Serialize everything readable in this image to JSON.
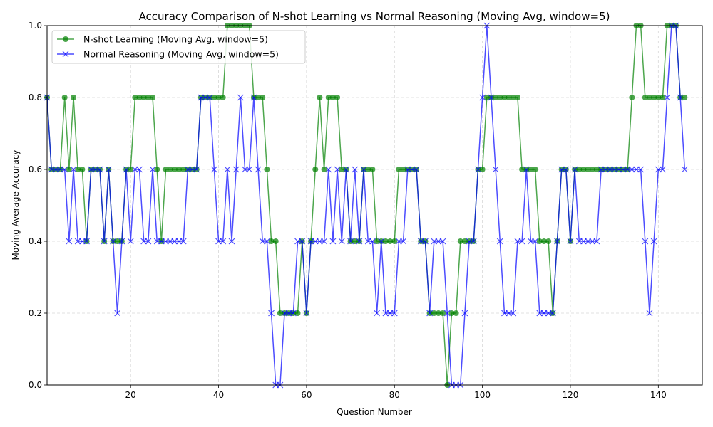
{
  "chart_data": {
    "type": "line",
    "title": "Accuracy Comparison of N-shot Learning vs Normal Reasoning (Moving Avg, window=5)",
    "xlabel": "Question Number",
    "ylabel": "Moving Average Accuracy",
    "xlim": [
      1,
      150
    ],
    "ylim": [
      0,
      1
    ],
    "xticks": [
      20,
      40,
      60,
      80,
      100,
      120,
      140
    ],
    "xtick_labels": [
      "20",
      "40",
      "60",
      "80",
      "100",
      "120",
      "140"
    ],
    "yticks": [
      0.0,
      0.2,
      0.4,
      0.6,
      0.8,
      1.0
    ],
    "ytick_labels": [
      "0.0",
      "0.2",
      "0.4",
      "0.6",
      "0.8",
      "1.0"
    ],
    "grid": true,
    "legend_position": "top-left",
    "x_start": 1,
    "series": [
      {
        "name": "N-shot Learning (Moving Avg, window=5)",
        "color": "#008000",
        "marker": "circle",
        "values": [
          0.8,
          0.6,
          0.6,
          0.6,
          0.8,
          0.6,
          0.8,
          0.6,
          0.6,
          0.4,
          0.6,
          0.6,
          0.6,
          0.4,
          0.6,
          0.4,
          0.4,
          0.4,
          0.6,
          0.6,
          0.8,
          0.8,
          0.8,
          0.8,
          0.8,
          0.6,
          0.4,
          0.6,
          0.6,
          0.6,
          0.6,
          0.6,
          0.6,
          0.6,
          0.6,
          0.8,
          0.8,
          0.8,
          0.8,
          0.8,
          0.8,
          1.0,
          1.0,
          1.0,
          1.0,
          1.0,
          1.0,
          0.8,
          0.8,
          0.8,
          0.6,
          0.4,
          0.4,
          0.2,
          0.2,
          0.2,
          0.2,
          0.2,
          0.4,
          0.2,
          0.4,
          0.6,
          0.8,
          0.6,
          0.8,
          0.8,
          0.8,
          0.6,
          0.6,
          0.4,
          0.4,
          0.4,
          0.6,
          0.6,
          0.6,
          0.4,
          0.4,
          0.4,
          0.4,
          0.4,
          0.6,
          0.6,
          0.6,
          0.6,
          0.6,
          0.4,
          0.4,
          0.2,
          0.2,
          0.2,
          0.2,
          0.0,
          0.2,
          0.2,
          0.4,
          0.4,
          0.4,
          0.4,
          0.6,
          0.6,
          0.8,
          0.8,
          0.8,
          0.8,
          0.8,
          0.8,
          0.8,
          0.8,
          0.6,
          0.6,
          0.6,
          0.6,
          0.4,
          0.4,
          0.4,
          0.2,
          0.4,
          0.6,
          0.6,
          0.4,
          0.6,
          0.6,
          0.6,
          0.6,
          0.6,
          0.6,
          0.6,
          0.6,
          0.6,
          0.6,
          0.6,
          0.6,
          0.6,
          0.8,
          1.0,
          1.0,
          0.8,
          0.8,
          0.8,
          0.8,
          0.8,
          1.0,
          1.0,
          1.0,
          0.8,
          0.8
        ]
      },
      {
        "name": "Normal Reasoning (Moving Avg, window=5)",
        "color": "#0000ff",
        "marker": "x",
        "values": [
          0.8,
          0.6,
          0.6,
          0.6,
          0.6,
          0.4,
          0.6,
          0.4,
          0.4,
          0.4,
          0.6,
          0.6,
          0.6,
          0.4,
          0.6,
          0.4,
          0.2,
          0.4,
          0.6,
          0.4,
          0.6,
          0.6,
          0.4,
          0.4,
          0.6,
          0.4,
          0.4,
          0.4,
          0.4,
          0.4,
          0.4,
          0.4,
          0.6,
          0.6,
          0.6,
          0.8,
          0.8,
          0.8,
          0.6,
          0.4,
          0.4,
          0.6,
          0.4,
          0.6,
          0.8,
          0.6,
          0.6,
          0.8,
          0.6,
          0.4,
          0.4,
          0.2,
          0.0,
          0.0,
          0.2,
          0.2,
          0.2,
          0.4,
          0.4,
          0.2,
          0.4,
          0.4,
          0.4,
          0.4,
          0.6,
          0.4,
          0.6,
          0.4,
          0.6,
          0.4,
          0.6,
          0.4,
          0.6,
          0.4,
          0.4,
          0.2,
          0.4,
          0.2,
          0.2,
          0.2,
          0.4,
          0.4,
          0.6,
          0.6,
          0.6,
          0.4,
          0.4,
          0.2,
          0.4,
          0.4,
          0.4,
          0.2,
          0.0,
          0.0,
          0.0,
          0.2,
          0.4,
          0.4,
          0.6,
          0.8,
          1.0,
          0.8,
          0.6,
          0.4,
          0.2,
          0.2,
          0.2,
          0.4,
          0.4,
          0.6,
          0.4,
          0.4,
          0.2,
          0.2,
          0.2,
          0.2,
          0.4,
          0.6,
          0.6,
          0.4,
          0.6,
          0.4,
          0.4,
          0.4,
          0.4,
          0.4,
          0.6,
          0.6,
          0.6,
          0.6,
          0.6,
          0.6,
          0.6,
          0.6,
          0.6,
          0.6,
          0.4,
          0.2,
          0.4,
          0.6,
          0.6,
          0.8,
          1.0,
          1.0,
          0.8,
          0.6
        ]
      }
    ]
  }
}
